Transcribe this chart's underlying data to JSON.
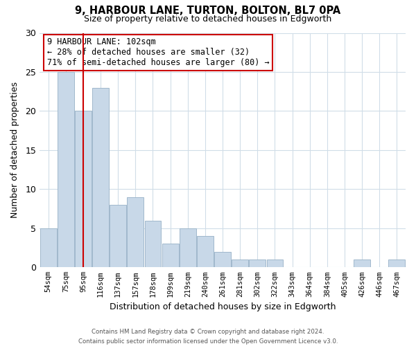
{
  "title": "9, HARBOUR LANE, TURTON, BOLTON, BL7 0PA",
  "subtitle": "Size of property relative to detached houses in Edgworth",
  "xlabel": "Distribution of detached houses by size in Edgworth",
  "ylabel": "Number of detached properties",
  "categories": [
    "54sqm",
    "75sqm",
    "95sqm",
    "116sqm",
    "137sqm",
    "157sqm",
    "178sqm",
    "199sqm",
    "219sqm",
    "240sqm",
    "261sqm",
    "281sqm",
    "302sqm",
    "322sqm",
    "343sqm",
    "364sqm",
    "384sqm",
    "405sqm",
    "426sqm",
    "446sqm",
    "467sqm"
  ],
  "values": [
    5,
    25,
    20,
    23,
    8,
    9,
    6,
    3,
    5,
    4,
    2,
    1,
    1,
    1,
    0,
    0,
    0,
    0,
    1,
    0,
    1
  ],
  "bar_color": "#c8d8e8",
  "bar_edge_color": "#a0b8cc",
  "vline_x": 2,
  "vline_color": "#cc0000",
  "ylim": [
    0,
    30
  ],
  "yticks": [
    0,
    5,
    10,
    15,
    20,
    25,
    30
  ],
  "annotation_title": "9 HARBOUR LANE: 102sqm",
  "annotation_line1": "← 28% of detached houses are smaller (32)",
  "annotation_line2": "71% of semi-detached houses are larger (80) →",
  "annotation_box_color": "#ffffff",
  "annotation_box_edge": "#cc0000",
  "footer1": "Contains HM Land Registry data © Crown copyright and database right 2024.",
  "footer2": "Contains public sector information licensed under the Open Government Licence v3.0.",
  "bg_color": "#ffffff",
  "grid_color": "#d0dde8"
}
